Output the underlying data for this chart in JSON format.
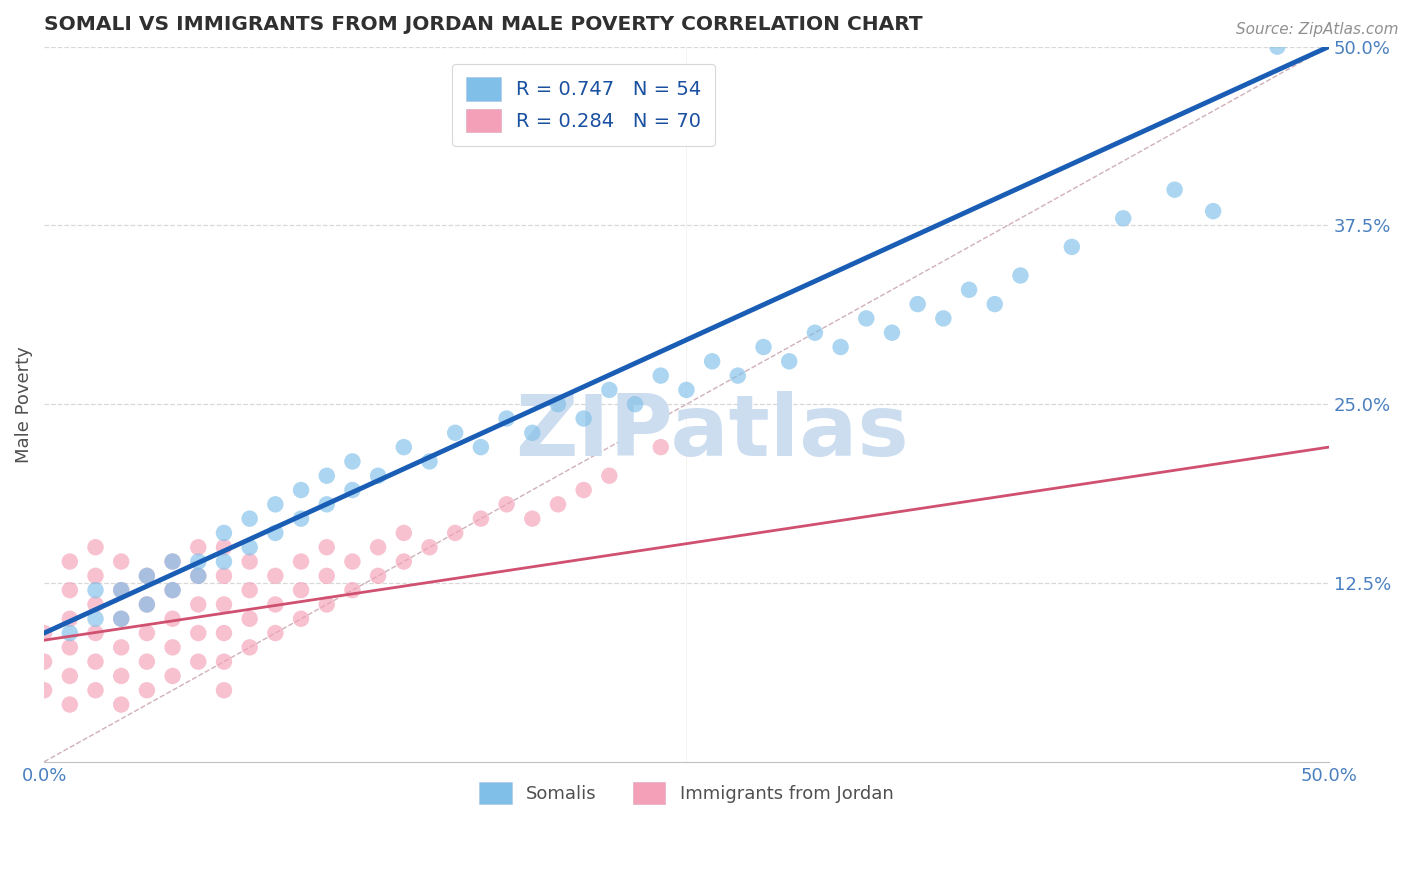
{
  "title": "SOMALI VS IMMIGRANTS FROM JORDAN MALE POVERTY CORRELATION CHART",
  "source": "Source: ZipAtlas.com",
  "ylabel": "Male Poverty",
  "xlim": [
    0.0,
    0.5
  ],
  "ylim": [
    0.0,
    0.5
  ],
  "yticks_right": [
    0.125,
    0.25,
    0.375,
    0.5
  ],
  "ytick_labels_right": [
    "12.5%",
    "25.0%",
    "37.5%",
    "50.0%"
  ],
  "legend_blue_label": "R = 0.747   N = 54",
  "legend_pink_label": "R = 0.284   N = 70",
  "legend_labels_bottom": [
    "Somalis",
    "Immigrants from Jordan"
  ],
  "blue_dot_color": "#7fbfe8",
  "pink_dot_color": "#f4a0b8",
  "blue_line_color": "#1a5db5",
  "pink_line_color": "#d05070",
  "diag_color": "#d0b0b8",
  "watermark": "ZIPatlas",
  "watermark_color": "#ccddf0",
  "title_color": "#303030",
  "axis_label_color": "#505050",
  "tick_color": "#4a80c0",
  "grid_color": "#d8d8d8",
  "blue_line_x0": 0.0,
  "blue_line_y0": 0.09,
  "blue_line_x1": 0.5,
  "blue_line_y1": 0.5,
  "pink_line_x0": 0.0,
  "pink_line_y0": 0.085,
  "pink_line_x1": 0.5,
  "pink_line_y1": 0.22,
  "somali_x": [
    0.01,
    0.02,
    0.02,
    0.03,
    0.03,
    0.04,
    0.04,
    0.05,
    0.05,
    0.06,
    0.06,
    0.07,
    0.07,
    0.08,
    0.08,
    0.09,
    0.09,
    0.1,
    0.1,
    0.11,
    0.11,
    0.12,
    0.12,
    0.13,
    0.14,
    0.15,
    0.16,
    0.17,
    0.18,
    0.19,
    0.2,
    0.21,
    0.22,
    0.23,
    0.24,
    0.25,
    0.26,
    0.27,
    0.28,
    0.29,
    0.3,
    0.31,
    0.32,
    0.33,
    0.34,
    0.35,
    0.36,
    0.37,
    0.38,
    0.4,
    0.42,
    0.44,
    0.455,
    0.48
  ],
  "somali_y": [
    0.09,
    0.1,
    0.12,
    0.1,
    0.12,
    0.11,
    0.13,
    0.12,
    0.14,
    0.13,
    0.14,
    0.14,
    0.16,
    0.15,
    0.17,
    0.16,
    0.18,
    0.17,
    0.19,
    0.18,
    0.2,
    0.19,
    0.21,
    0.2,
    0.22,
    0.21,
    0.23,
    0.22,
    0.24,
    0.23,
    0.25,
    0.24,
    0.26,
    0.25,
    0.27,
    0.26,
    0.28,
    0.27,
    0.29,
    0.28,
    0.3,
    0.29,
    0.31,
    0.3,
    0.32,
    0.31,
    0.33,
    0.32,
    0.34,
    0.36,
    0.38,
    0.4,
    0.385,
    0.5
  ],
  "jordan_x": [
    0.0,
    0.0,
    0.0,
    0.01,
    0.01,
    0.01,
    0.01,
    0.01,
    0.01,
    0.02,
    0.02,
    0.02,
    0.02,
    0.02,
    0.02,
    0.03,
    0.03,
    0.03,
    0.03,
    0.03,
    0.03,
    0.04,
    0.04,
    0.04,
    0.04,
    0.04,
    0.05,
    0.05,
    0.05,
    0.05,
    0.05,
    0.06,
    0.06,
    0.06,
    0.06,
    0.06,
    0.07,
    0.07,
    0.07,
    0.07,
    0.07,
    0.07,
    0.08,
    0.08,
    0.08,
    0.08,
    0.09,
    0.09,
    0.09,
    0.1,
    0.1,
    0.1,
    0.11,
    0.11,
    0.11,
    0.12,
    0.12,
    0.13,
    0.13,
    0.14,
    0.14,
    0.15,
    0.16,
    0.17,
    0.18,
    0.19,
    0.2,
    0.21,
    0.22,
    0.24
  ],
  "jordan_y": [
    0.05,
    0.07,
    0.09,
    0.04,
    0.06,
    0.08,
    0.1,
    0.12,
    0.14,
    0.05,
    0.07,
    0.09,
    0.11,
    0.13,
    0.15,
    0.04,
    0.06,
    0.08,
    0.1,
    0.12,
    0.14,
    0.05,
    0.07,
    0.09,
    0.11,
    0.13,
    0.06,
    0.08,
    0.1,
    0.12,
    0.14,
    0.07,
    0.09,
    0.11,
    0.13,
    0.15,
    0.05,
    0.07,
    0.09,
    0.11,
    0.13,
    0.15,
    0.08,
    0.1,
    0.12,
    0.14,
    0.09,
    0.11,
    0.13,
    0.1,
    0.12,
    0.14,
    0.11,
    0.13,
    0.15,
    0.12,
    0.14,
    0.13,
    0.15,
    0.14,
    0.16,
    0.15,
    0.16,
    0.17,
    0.18,
    0.17,
    0.18,
    0.19,
    0.2,
    0.22
  ]
}
